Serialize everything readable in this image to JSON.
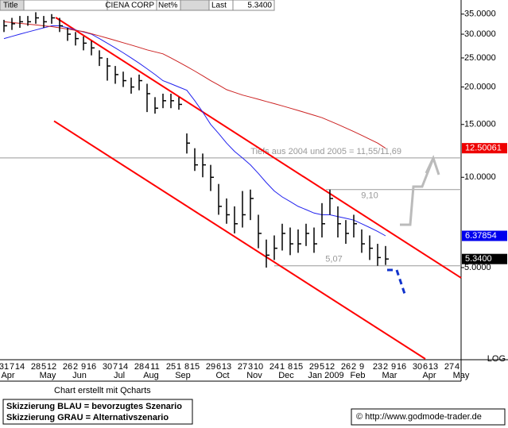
{
  "header": {
    "title": "Title",
    "symbol": "CIENA CORP",
    "net": "Net%",
    "last_label": "Last",
    "last_value": "5.3400"
  },
  "chart_data": {
    "type": "ohlc",
    "log_scale": true,
    "grid": false,
    "categories": [
      "31",
      "7",
      "14",
      null,
      "28",
      "5",
      "12",
      null,
      "26",
      "2",
      "9",
      "16",
      null,
      "30",
      "7",
      "14",
      null,
      "28",
      "4",
      "11",
      null,
      "25",
      "1",
      "8",
      "15",
      null,
      "29",
      "6",
      "13",
      null,
      "27",
      "3",
      "10",
      null,
      "24",
      "1",
      "8",
      "15",
      null,
      "29",
      "5",
      "12",
      null,
      "26",
      "2",
      "9",
      null,
      "23",
      "2",
      "9",
      "16",
      null,
      "30",
      "6",
      "13",
      null,
      "27",
      "4"
    ],
    "months": [
      "Apr",
      null,
      null,
      null,
      null,
      "May",
      null,
      null,
      null,
      "Jun",
      null,
      null,
      null,
      null,
      "Jul",
      null,
      null,
      null,
      "Aug",
      null,
      null,
      null,
      "Sep",
      null,
      null,
      null,
      null,
      "Oct",
      null,
      null,
      null,
      "Nov",
      null,
      null,
      null,
      "Dec",
      null,
      null,
      null,
      null,
      "Jan 2009",
      null,
      null,
      null,
      "Feb",
      null,
      null,
      null,
      "Mar",
      null,
      null,
      null,
      null,
      "Apr",
      null,
      null,
      null,
      "May"
    ],
    "xlim": [
      -0.5,
      57.5
    ],
    "ylim": [
      2.48,
      39
    ],
    "yticks": [
      {
        "value": 35,
        "label": "35.0000"
      },
      {
        "value": 30,
        "label": "30.0000"
      },
      {
        "value": 25,
        "label": "25.0000"
      },
      {
        "value": 20,
        "label": "20.0000"
      },
      {
        "value": 15,
        "label": "15.0000"
      },
      {
        "value": 10,
        "label": "10.0000"
      },
      {
        "value": 5,
        "label": "5.0000"
      }
    ],
    "scale_label": "LOG",
    "color": "#000000",
    "high": [
      33.5,
      34,
      34.5,
      34.5,
      35.5,
      34.5,
      35,
      34,
      31.5,
      30.5,
      29.5,
      28.5,
      26.5,
      25,
      23.5,
      22.5,
      21.5,
      22,
      20.5,
      18.5,
      19,
      19,
      18.5,
      14,
      12.5,
      12,
      11,
      9.5,
      8.5,
      8,
      9,
      9.1,
      7.5,
      6.2,
      6.4,
      7,
      6.8,
      6.7,
      7,
      6.8,
      8.2,
      9.1,
      8,
      7.2,
      7.5,
      6.7,
      6.4,
      6,
      5.9,
      null,
      null,
      null,
      null,
      null,
      null,
      null,
      null,
      null
    ],
    "low": [
      30.5,
      31,
      31.5,
      32,
      32.5,
      31.5,
      32.5,
      30.5,
      28.5,
      27.5,
      26.5,
      25.5,
      23.5,
      21,
      20.5,
      20,
      19,
      19.5,
      16.5,
      16.3,
      17,
      17,
      16.8,
      12,
      10.5,
      10,
      9,
      7.5,
      7,
      6.5,
      6.8,
      7.2,
      5.8,
      5,
      5.3,
      5.7,
      5.5,
      5.6,
      5.9,
      5.6,
      6.3,
      7.5,
      6.3,
      6,
      6.3,
      5.6,
      5.3,
      5.07,
      5.1,
      null,
      null,
      null,
      null,
      null,
      null,
      null,
      null,
      null
    ],
    "close": [
      32,
      32.5,
      33,
      33,
      34,
      33,
      34,
      32,
      30,
      29,
      28,
      27,
      25,
      23.5,
      22,
      21,
      20,
      21,
      19,
      17,
      18,
      18,
      17.5,
      13,
      11,
      11,
      10,
      8,
      7.5,
      7,
      7.5,
      8.5,
      6.5,
      5.5,
      5.8,
      6.5,
      6,
      6,
      6.5,
      6,
      7,
      8.5,
      7,
      6.5,
      7,
      6,
      5.8,
      5.4,
      5.34,
      null,
      null,
      null,
      null,
      null,
      null,
      null,
      null,
      null
    ],
    "overlays": [
      {
        "color": "#2222ee",
        "values": [
          29,
          29.5,
          30,
          30.5,
          31,
          31.5,
          32,
          32,
          31.5,
          31,
          30.5,
          30,
          29,
          28,
          27,
          26,
          25,
          24,
          23,
          22,
          21,
          20.5,
          20,
          19.5,
          18,
          16.5,
          15,
          14,
          13,
          12.2,
          11.6,
          11,
          10.3,
          9.6,
          9,
          8.6,
          8.3,
          8,
          7.8,
          7.6,
          7.5,
          7.5,
          7.4,
          7.3,
          7.2,
          7,
          6.8,
          6.6,
          6.38,
          null,
          null,
          null,
          null,
          null,
          null,
          null,
          null,
          null
        ]
      },
      {
        "color": "#cc2222",
        "values": [
          33,
          32.8,
          32.6,
          32.4,
          32.2,
          32,
          31.8,
          31.5,
          31.2,
          30.9,
          30.6,
          30.1,
          29.6,
          29.1,
          28.6,
          28.1,
          27.6,
          27.1,
          26.6,
          26.2,
          25.8,
          25,
          24.2,
          23.4,
          22.6,
          21.8,
          21,
          20.3,
          19.6,
          19.2,
          18.8,
          18.5,
          18.2,
          17.9,
          17.6,
          17.3,
          17,
          16.7,
          16.4,
          16.1,
          15.8,
          15.4,
          15,
          14.6,
          14.2,
          13.8,
          13.4,
          13,
          12.5,
          null,
          null,
          null,
          null,
          null,
          null,
          null,
          null,
          null
        ]
      }
    ],
    "trendlines": [
      {
        "color": "#ff0000",
        "points": [
          [
            6.5,
            34.1
          ],
          [
            57.5,
            4.62
          ]
        ]
      },
      {
        "color": "#ff0000",
        "points": [
          [
            6.3,
            15.4
          ],
          [
            53,
            2.48
          ]
        ]
      }
    ],
    "hlines": [
      {
        "value": 11.6,
        "start": -0.5,
        "label": "Tiefs aus 2004 und 2005 = 11,55/11,69"
      },
      {
        "value": 9.1,
        "start": 40.5,
        "label": "9,10"
      },
      {
        "value": 5.07,
        "start": 34,
        "label": "5,07"
      }
    ],
    "price_tags": [
      {
        "value": 12.50061,
        "label": "12.50061",
        "color": "#ee0000"
      },
      {
        "value": 6.37854,
        "label": "6.37854",
        "color": "#0000ee"
      },
      {
        "value": 5.34,
        "label": "5.3400",
        "color": "#000000"
      }
    ]
  },
  "footer": {
    "credit": "Chart erstellt mit Qcharts",
    "legend_blue": "Skizzierung BLAU = bevorzugtes Szenario",
    "legend_gray": "Skizzierung GRAU = Alternativszenario",
    "copyright": "© http://www.godmode-trader.de"
  }
}
